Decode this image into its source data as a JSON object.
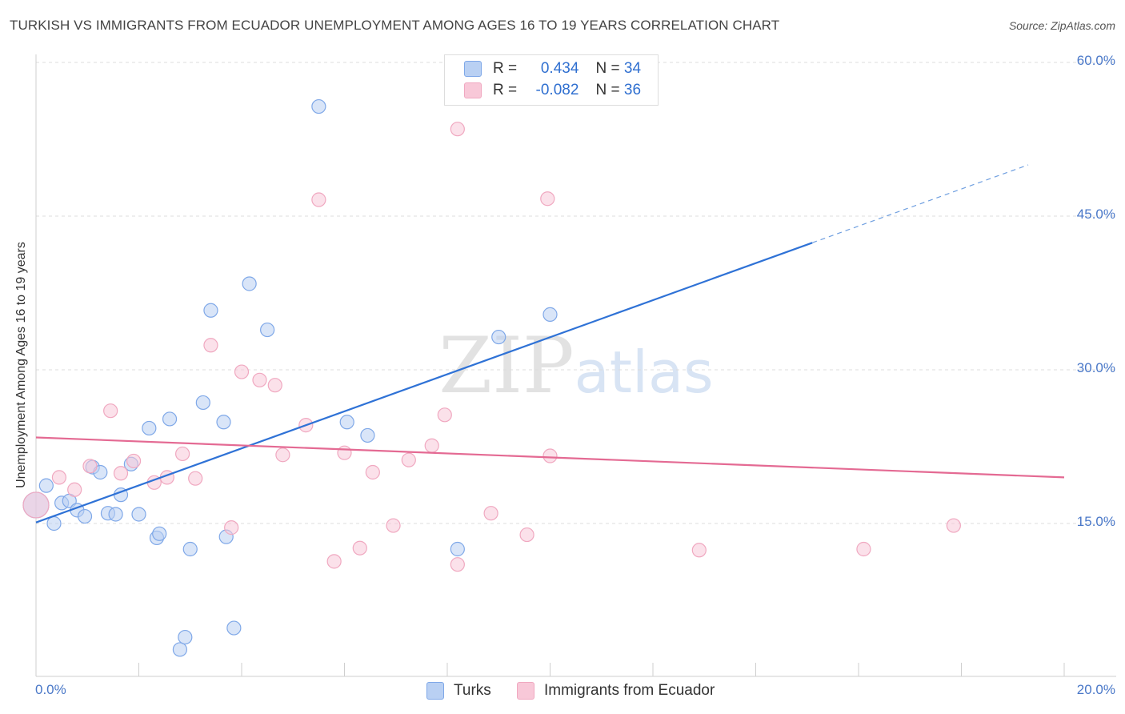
{
  "chart_data": {
    "type": "scatter",
    "title": "TURKISH VS IMMIGRANTS FROM ECUADOR UNEMPLOYMENT AMONG AGES 16 TO 19 YEARS CORRELATION CHART",
    "source": "Source: ZipAtlas.com",
    "xlabel": "",
    "ylabel": "Unemployment Among Ages 16 to 19 years",
    "xlim": [
      0,
      20
    ],
    "ylim": [
      0,
      61
    ],
    "y_ticks": [
      {
        "value": 15,
        "label": "15.0%"
      },
      {
        "value": 30,
        "label": "30.0%"
      },
      {
        "value": 45,
        "label": "45.0%"
      },
      {
        "value": 60,
        "label": "60.0%"
      }
    ],
    "x_tick_labels": {
      "min": "0.0%",
      "max": "20.0%"
    },
    "watermark": "ZIPatlas",
    "series": [
      {
        "name": "Turks",
        "color": "#7fa8e8",
        "fill": "#b9d0f3",
        "R": "0.434",
        "N": "34",
        "trend": {
          "x0": 0,
          "y0": 15.1,
          "x1": 15.1,
          "y1": 42.4,
          "x_dash_end": 19.3,
          "y_dash_end": 50.0
        },
        "points": [
          [
            0.0,
            16.8
          ],
          [
            0.2,
            18.7
          ],
          [
            0.35,
            15.0
          ],
          [
            0.5,
            17.0
          ],
          [
            0.65,
            17.2
          ],
          [
            0.8,
            16.3
          ],
          [
            0.95,
            15.7
          ],
          [
            1.1,
            20.5
          ],
          [
            1.25,
            20.0
          ],
          [
            1.4,
            16.0
          ],
          [
            1.55,
            15.9
          ],
          [
            1.65,
            17.8
          ],
          [
            1.85,
            20.8
          ],
          [
            2.0,
            15.9
          ],
          [
            2.2,
            24.3
          ],
          [
            2.35,
            13.6
          ],
          [
            2.4,
            14.0
          ],
          [
            2.6,
            25.2
          ],
          [
            2.8,
            2.7
          ],
          [
            2.9,
            3.9
          ],
          [
            3.0,
            12.5
          ],
          [
            3.25,
            26.8
          ],
          [
            3.4,
            35.8
          ],
          [
            3.65,
            24.9
          ],
          [
            3.7,
            13.7
          ],
          [
            3.85,
            4.8
          ],
          [
            4.15,
            38.4
          ],
          [
            4.5,
            33.9
          ],
          [
            5.5,
            55.7
          ],
          [
            6.05,
            24.9
          ],
          [
            6.45,
            23.6
          ],
          [
            8.2,
            12.5
          ],
          [
            9.0,
            33.2
          ],
          [
            10.0,
            35.4
          ]
        ]
      },
      {
        "name": "Immigrants from Ecuador",
        "color": "#f0a8c0",
        "fill": "#f8c8d8",
        "R": "-0.082",
        "N": "36",
        "trend": {
          "x0": 0,
          "y0": 23.4,
          "x1": 20,
          "y1": 19.5
        },
        "points": [
          [
            0.0,
            16.8
          ],
          [
            0.45,
            19.5
          ],
          [
            0.75,
            18.3
          ],
          [
            1.05,
            20.6
          ],
          [
            1.45,
            26.0
          ],
          [
            1.65,
            19.9
          ],
          [
            1.9,
            21.1
          ],
          [
            2.3,
            19.0
          ],
          [
            2.55,
            19.5
          ],
          [
            2.85,
            21.8
          ],
          [
            3.1,
            19.4
          ],
          [
            3.4,
            32.4
          ],
          [
            3.8,
            14.6
          ],
          [
            4.0,
            29.8
          ],
          [
            4.35,
            29.0
          ],
          [
            4.65,
            28.5
          ],
          [
            4.8,
            21.7
          ],
          [
            5.25,
            24.6
          ],
          [
            5.5,
            46.6
          ],
          [
            5.8,
            11.3
          ],
          [
            6.0,
            21.9
          ],
          [
            6.3,
            12.6
          ],
          [
            6.55,
            20.0
          ],
          [
            6.95,
            14.8
          ],
          [
            7.25,
            21.2
          ],
          [
            7.7,
            22.6
          ],
          [
            7.95,
            25.6
          ],
          [
            8.2,
            53.5
          ],
          [
            8.2,
            11.0
          ],
          [
            8.85,
            16.0
          ],
          [
            9.55,
            13.9
          ],
          [
            9.95,
            46.7
          ],
          [
            10.0,
            21.6
          ],
          [
            12.9,
            12.4
          ],
          [
            16.1,
            12.5
          ],
          [
            17.85,
            14.8
          ]
        ]
      }
    ]
  },
  "legend": {
    "r_label": "R =",
    "n_label": "N ="
  }
}
